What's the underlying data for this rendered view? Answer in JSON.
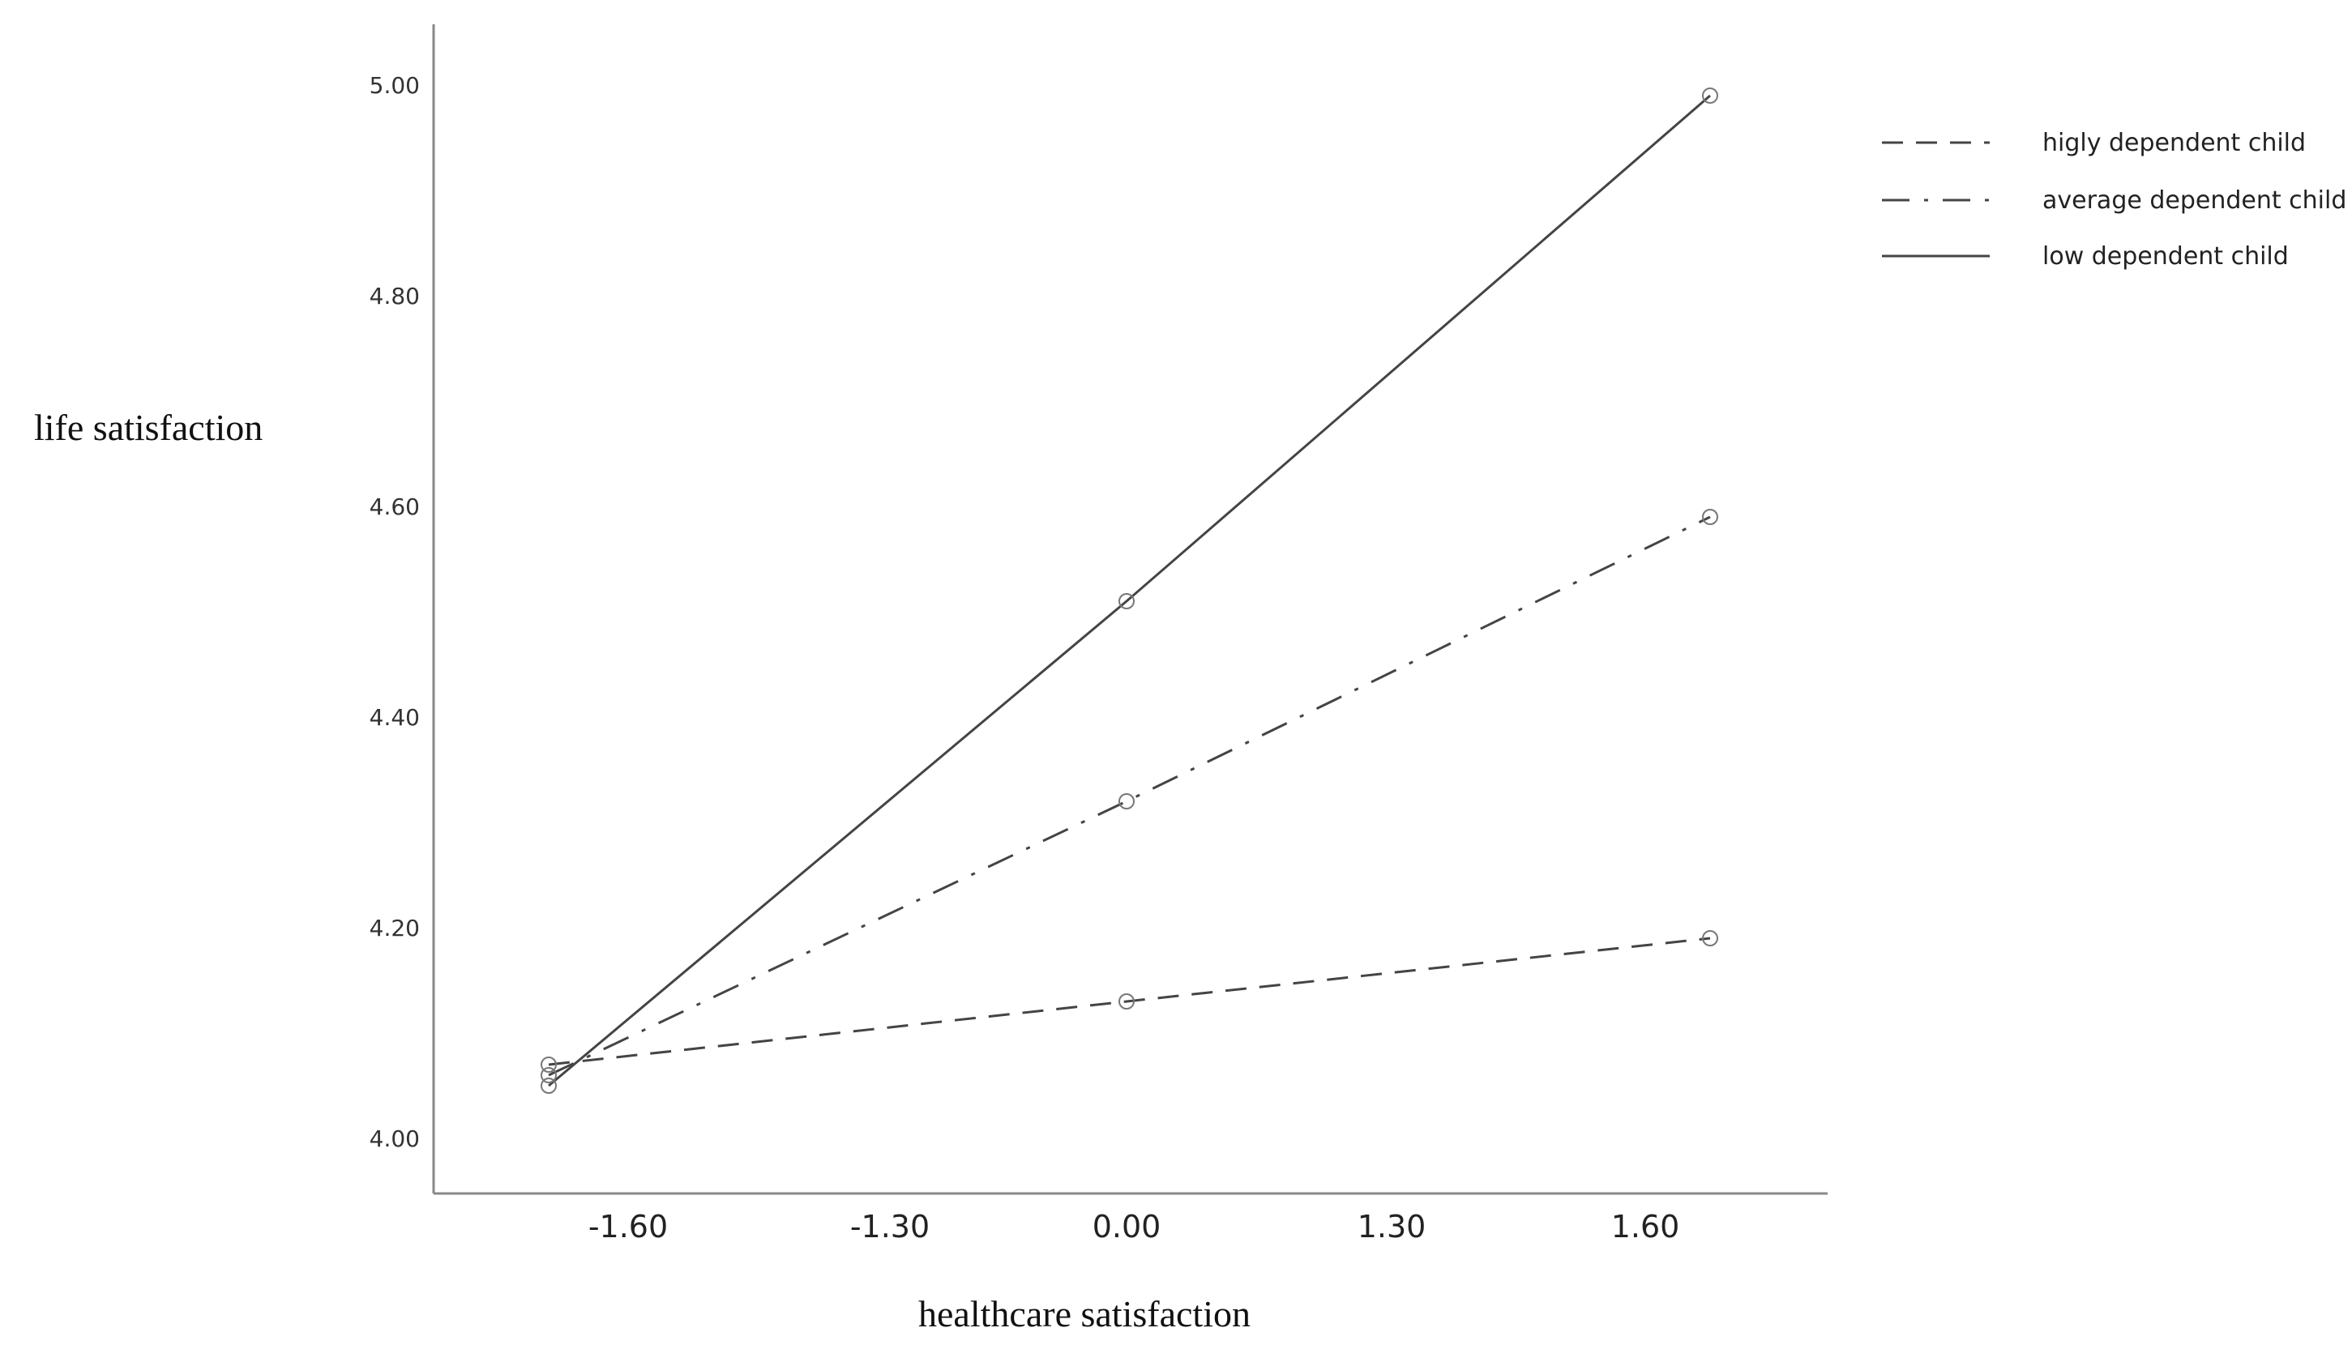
{
  "chart_data": {
    "type": "line",
    "xlabel": "healthcare satisfaction",
    "ylabel": "life satisfaction",
    "x_tick_labels": [
      "-1.60",
      "-1.30",
      "0.00",
      "1.30",
      "1.60"
    ],
    "y_ticks": [
      4.0,
      4.2,
      4.4,
      4.6,
      4.8,
      5.0
    ],
    "y_tick_labels": [
      "4.00",
      "4.20",
      "4.40",
      "4.60",
      "4.80",
      "5.00"
    ],
    "ylim": [
      4.0,
      5.0
    ],
    "x_point_positions": [
      "-1.60",
      "0.00",
      "1.60"
    ],
    "grid": false,
    "legend_position": "top-right",
    "series": [
      {
        "name": "higly dependent child",
        "line_style": "dashed",
        "values": [
          4.07,
          4.13,
          4.19
        ]
      },
      {
        "name": "average dependent child",
        "line_style": "dash-dot",
        "values": [
          4.06,
          4.32,
          4.59
        ]
      },
      {
        "name": "low dependent child",
        "line_style": "solid",
        "values": [
          4.05,
          4.51,
          4.99
        ]
      }
    ],
    "colors": {
      "line": "#444444",
      "axis": "#888888",
      "marker": "#777777"
    }
  }
}
